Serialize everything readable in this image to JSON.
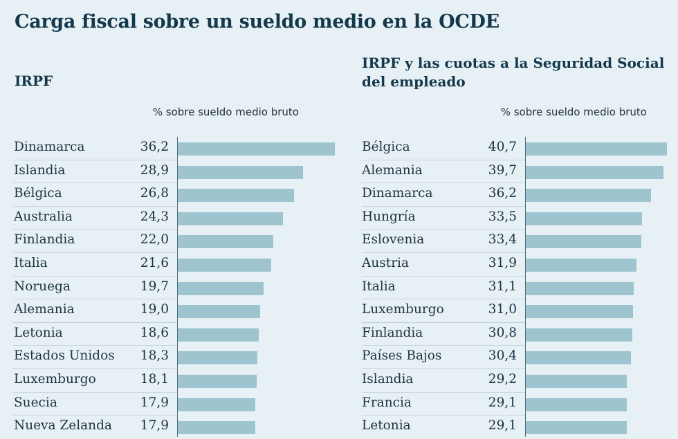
{
  "title": "Carga fiscal sobre un sueldo medio en la OCDE",
  "chart_data": [
    {
      "type": "bar",
      "orientation": "horizontal",
      "title": "IRPF",
      "unit_label": "% sobre sueldo medio bruto",
      "xlim": [
        0,
        36.2
      ],
      "categories": [
        "Dinamarca",
        "Islandia",
        "Bélgica",
        "Australia",
        "Finlandia",
        "Italia",
        "Noruega",
        "Alemania",
        "Letonia",
        "Estados Unidos",
        "Luxemburgo",
        "Suecia",
        "Nueva Zelanda"
      ],
      "values": [
        36.2,
        28.9,
        26.8,
        24.3,
        22.0,
        21.6,
        19.7,
        19.0,
        18.6,
        18.3,
        18.1,
        17.9,
        17.9
      ],
      "labels": [
        "36,2",
        "28,9",
        "26,8",
        "24,3",
        "22,0",
        "21,6",
        "19,7",
        "19,0",
        "18,6",
        "18,3",
        "18,1",
        "17,9",
        "17,9"
      ],
      "bar_color": "#9ec5cf"
    },
    {
      "type": "bar",
      "orientation": "horizontal",
      "title": "IRPF y las cuotas a la Seguridad Social del empleado",
      "unit_label": "% sobre sueldo medio bruto",
      "xlim": [
        0,
        40.7
      ],
      "categories": [
        "Bélgica",
        "Alemania",
        "Dinamarca",
        "Hungría",
        "Eslovenia",
        "Austria",
        "Italia",
        "Luxemburgo",
        "Finlandia",
        "Países Bajos",
        "Islandia",
        "Francia",
        "Letonia"
      ],
      "values": [
        40.7,
        39.7,
        36.2,
        33.5,
        33.4,
        31.9,
        31.1,
        31.0,
        30.8,
        30.4,
        29.2,
        29.1,
        29.1
      ],
      "labels": [
        "40,7",
        "39,7",
        "36,2",
        "33,5",
        "33,4",
        "31,9",
        "31,1",
        "31,0",
        "30,8",
        "30,4",
        "29,2",
        "29,1",
        "29,1"
      ],
      "bar_color": "#9ec5cf"
    }
  ]
}
